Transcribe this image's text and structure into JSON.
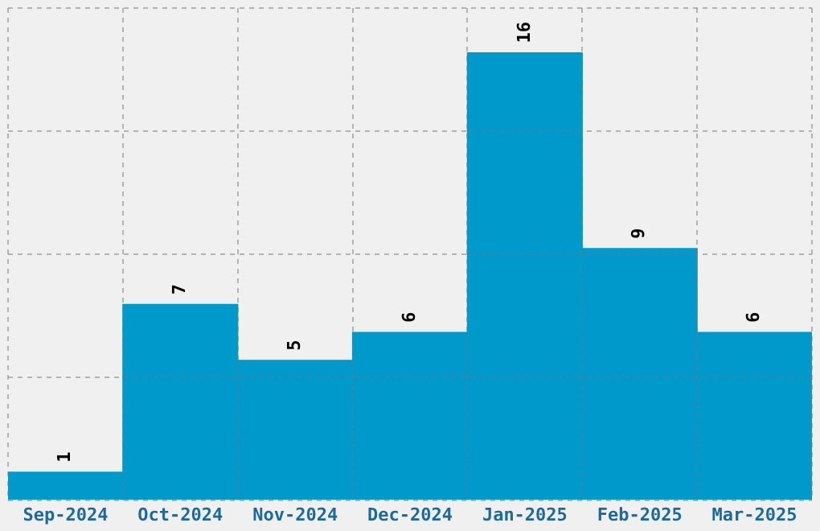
{
  "chart_data": {
    "type": "bar",
    "categories": [
      "Sep-2024",
      "Oct-2024",
      "Nov-2024",
      "Dec-2024",
      "Jan-2025",
      "Feb-2025",
      "Mar-2025"
    ],
    "values": [
      1,
      7,
      5,
      6,
      16,
      9,
      6
    ],
    "color": "#0099cc",
    "ylim": [
      0,
      17.6
    ],
    "yticks": [
      {
        "value": 0,
        "label": null
      },
      {
        "value": 4.4,
        "label": null
      },
      {
        "value": 8.8,
        "label": null
      },
      {
        "value": 13.2,
        "label": null
      },
      {
        "value": 17.6,
        "label": null
      }
    ],
    "tick_labels": "x",
    "grid": true,
    "data_labels": true
  }
}
